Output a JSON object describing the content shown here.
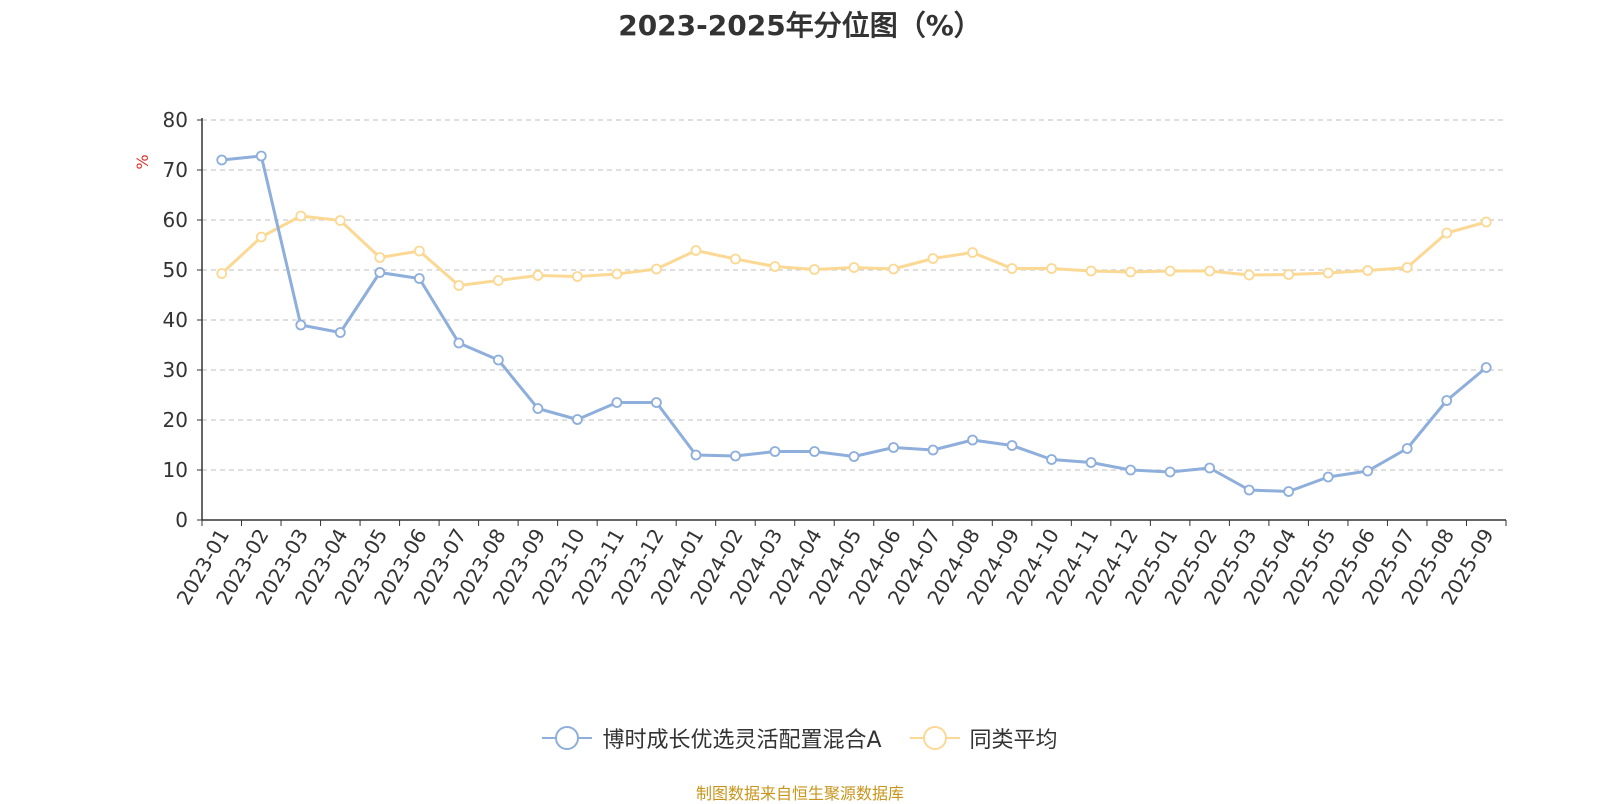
{
  "chart_data": {
    "type": "line",
    "title": "2023-2025年分位图（%）",
    "ylabel": "%",
    "xlabel": "",
    "ylim": [
      0,
      80
    ],
    "yticks": [
      0,
      10,
      20,
      30,
      40,
      50,
      60,
      70,
      80
    ],
    "grid": true,
    "legend_position": "bottom",
    "categories": [
      "2023-01",
      "2023-02",
      "2023-03",
      "2023-04",
      "2023-05",
      "2023-06",
      "2023-07",
      "2023-08",
      "2023-09",
      "2023-10",
      "2023-11",
      "2023-12",
      "2024-01",
      "2024-02",
      "2024-03",
      "2024-04",
      "2024-05",
      "2024-06",
      "2024-07",
      "2024-08",
      "2024-09",
      "2024-10",
      "2024-11",
      "2024-12",
      "2025-01",
      "2025-02",
      "2025-03",
      "2025-04",
      "2025-05",
      "2025-06",
      "2025-07",
      "2025-08",
      "2025-09"
    ],
    "series": [
      {
        "name": "博时成长优选灵活配置混合A",
        "color": "#8eaedb",
        "values": [
          72.0,
          72.8,
          39.0,
          37.5,
          49.5,
          48.3,
          35.4,
          32.0,
          22.3,
          20.1,
          23.5,
          23.5,
          13.0,
          12.8,
          13.7,
          13.7,
          12.7,
          14.5,
          14.0,
          16.0,
          14.9,
          12.1,
          11.5,
          10.0,
          9.6,
          10.4,
          6.0,
          5.7,
          8.6,
          9.8,
          14.3,
          23.9,
          30.5
        ]
      },
      {
        "name": "同类平均",
        "color": "#fbd995",
        "values": [
          49.3,
          56.6,
          60.8,
          59.9,
          52.5,
          53.8,
          46.9,
          47.9,
          48.9,
          48.7,
          49.2,
          50.2,
          53.9,
          52.2,
          50.7,
          50.1,
          50.5,
          50.2,
          52.3,
          53.5,
          50.3,
          50.3,
          49.8,
          49.6,
          49.8,
          49.8,
          49.0,
          49.1,
          49.4,
          49.9,
          50.5,
          57.4,
          59.6
        ]
      }
    ]
  },
  "source_note": "制图数据来自恒生聚源数据库"
}
